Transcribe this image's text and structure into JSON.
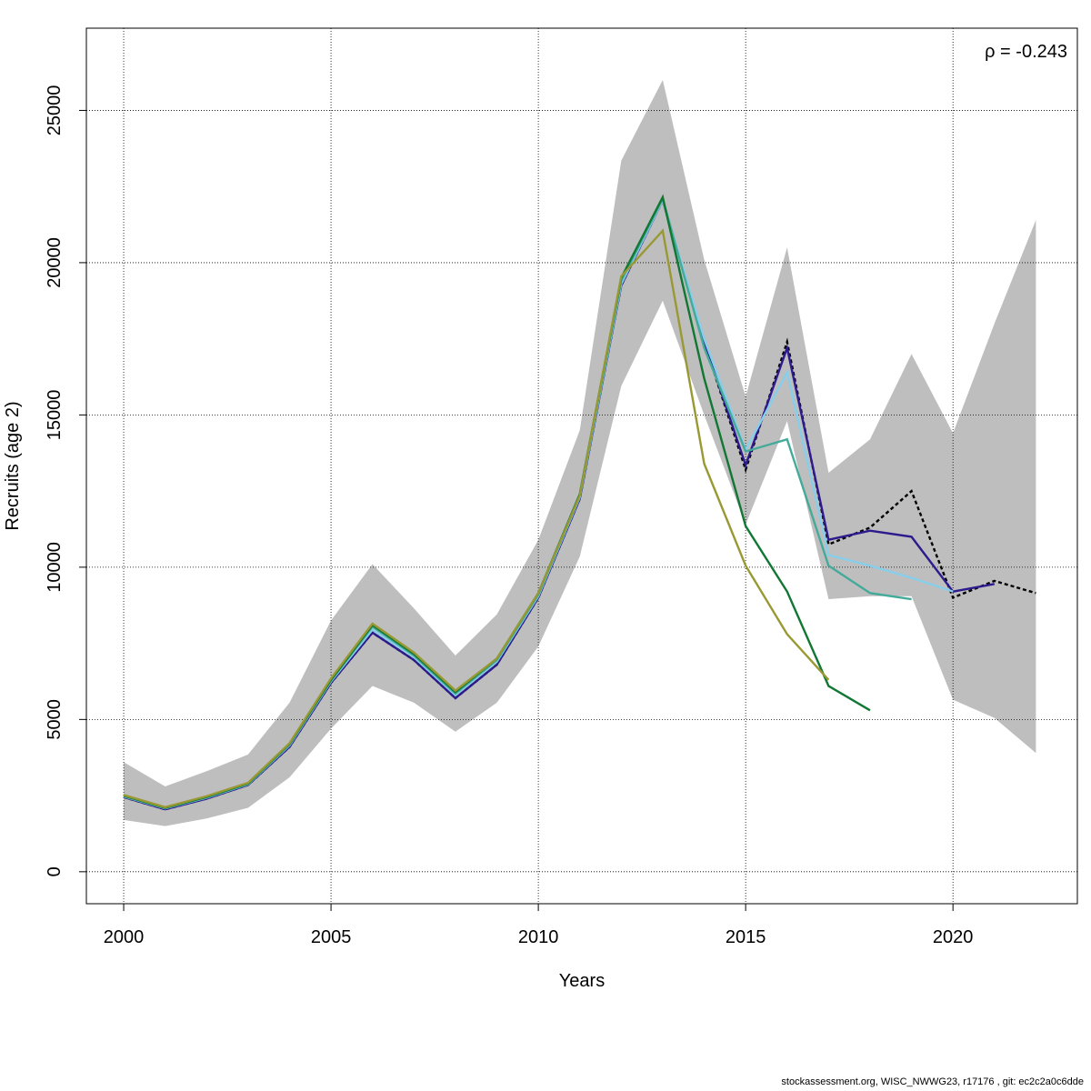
{
  "chart_data": {
    "type": "line",
    "title": "",
    "xlabel": "Years",
    "ylabel": "Recruits (age 2)",
    "xlim": [
      1999.1,
      2023.0
    ],
    "ylim": [
      -1050,
      27700
    ],
    "x_ticks": [
      2000,
      2005,
      2010,
      2015,
      2020
    ],
    "y_ticks": [
      0,
      5000,
      10000,
      15000,
      20000,
      25000
    ],
    "grid": true,
    "annotation": "ρ = -0.243",
    "confidence_band": {
      "x": [
        2000,
        2001,
        2002,
        2003,
        2004,
        2005,
        2006,
        2007,
        2008,
        2009,
        2010,
        2011,
        2012,
        2013,
        2014,
        2015,
        2016,
        2017,
        2018,
        2019,
        2020,
        2021,
        2022
      ],
      "upper": [
        3600,
        2800,
        3300,
        3850,
        5550,
        8250,
        10100,
        8650,
        7100,
        8450,
        10900,
        14500,
        23350,
        26000,
        20100,
        15600,
        20500,
        13100,
        14200,
        17000,
        14400,
        18000,
        21400
      ],
      "lower": [
        1700,
        1500,
        1750,
        2100,
        3100,
        4700,
        6100,
        5550,
        4600,
        5550,
        7400,
        10350,
        15950,
        18750,
        15000,
        11400,
        14800,
        8950,
        9050,
        9050,
        5650,
        5050,
        3900
      ],
      "color": "#bebebe"
    },
    "series": [
      {
        "color": "#000000",
        "dashed": true,
        "x": [
          2000,
          2001,
          2002,
          2003,
          2004,
          2005,
          2006,
          2007,
          2008,
          2009,
          2010,
          2011,
          2012,
          2013,
          2014,
          2015,
          2016,
          2017,
          2018,
          2019,
          2020,
          2021,
          2022
        ],
        "y": [
          2450,
          2050,
          2400,
          2850,
          4100,
          6200,
          7850,
          6950,
          5700,
          6800,
          9000,
          12250,
          19250,
          22050,
          17400,
          13200,
          17400,
          10750,
          11300,
          12500,
          9000,
          9550,
          9150
        ]
      },
      {
        "color": "#2d1b8e",
        "x": [
          2000,
          2001,
          2002,
          2003,
          2004,
          2005,
          2006,
          2007,
          2008,
          2009,
          2010,
          2011,
          2012,
          2013,
          2014,
          2015,
          2016,
          2017,
          2018,
          2019,
          2020,
          2021
        ],
        "y": [
          2450,
          2050,
          2400,
          2850,
          4100,
          6200,
          7850,
          6950,
          5700,
          6800,
          9000,
          12250,
          19250,
          22050,
          17400,
          13350,
          17200,
          10900,
          11200,
          11000,
          9200,
          9450
        ]
      },
      {
        "color": "#87ceeb",
        "x": [
          2000,
          2001,
          2002,
          2003,
          2004,
          2005,
          2006,
          2007,
          2008,
          2009,
          2010,
          2011,
          2012,
          2013,
          2014,
          2015,
          2016,
          2017,
          2018,
          2019,
          2020
        ],
        "y": [
          2470,
          2080,
          2430,
          2870,
          4150,
          6250,
          7950,
          7050,
          5800,
          6900,
          9050,
          12300,
          19300,
          22050,
          17500,
          13850,
          16400,
          10400,
          10050,
          9650,
          9200
        ]
      },
      {
        "color": "#44aa99",
        "x": [
          2000,
          2001,
          2002,
          2003,
          2004,
          2005,
          2006,
          2007,
          2008,
          2009,
          2010,
          2011,
          2012,
          2013,
          2014,
          2015,
          2016,
          2017,
          2018,
          2019
        ],
        "y": [
          2480,
          2090,
          2440,
          2880,
          4170,
          6280,
          8050,
          7100,
          5850,
          6950,
          9100,
          12350,
          19400,
          22100,
          17200,
          13800,
          14200,
          10050,
          9150,
          8950
        ]
      },
      {
        "color": "#117733",
        "x": [
          2000,
          2001,
          2002,
          2003,
          2004,
          2005,
          2006,
          2007,
          2008,
          2009,
          2010,
          2011,
          2012,
          2013,
          2014,
          2015,
          2016,
          2017,
          2018
        ],
        "y": [
          2500,
          2100,
          2460,
          2900,
          4200,
          6300,
          8100,
          7150,
          5900,
          7000,
          9150,
          12400,
          19500,
          22150,
          16200,
          11350,
          9200,
          6100,
          5300
        ]
      },
      {
        "color": "#999933",
        "x": [
          2000,
          2001,
          2002,
          2003,
          2004,
          2005,
          2006,
          2007,
          2008,
          2009,
          2010,
          2011,
          2012,
          2013,
          2014,
          2015,
          2016,
          2017
        ],
        "y": [
          2520,
          2120,
          2480,
          2920,
          4220,
          6350,
          8150,
          7200,
          5950,
          7000,
          9150,
          12350,
          19550,
          21050,
          13400,
          10050,
          7800,
          6300
        ]
      }
    ]
  },
  "footer_text": "stockassessment.org, WISC_NWWG23, r17176 , git: ec2c2a0c6dde"
}
